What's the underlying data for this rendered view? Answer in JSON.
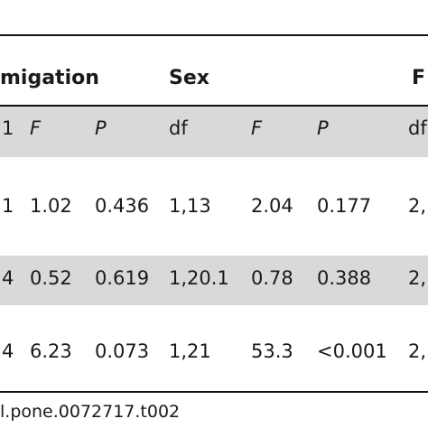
{
  "table": {
    "groups": [
      {
        "label": "migation"
      },
      {
        "label": "Sex"
      },
      {
        "label": "F"
      }
    ],
    "columns": [
      "1",
      "F",
      "P",
      "df",
      "F",
      "P",
      "df"
    ],
    "rows": [
      [
        "1",
        "1.02",
        "0.436",
        "1,13",
        "2.04",
        "0.177",
        "2,"
      ],
      [
        "4",
        "0.52",
        "0.619",
        "1,20.1",
        "0.78",
        "0.388",
        "2,"
      ],
      [
        "4",
        "6.23",
        "0.073",
        "1,21",
        "53.3",
        "<0.001",
        "2,"
      ]
    ]
  },
  "footer": {
    "doi_text": "l.pone.0072717.t002"
  },
  "colors": {
    "band": "#d9d9d9",
    "rule": "#111111",
    "text": "#1a1a1a"
  }
}
